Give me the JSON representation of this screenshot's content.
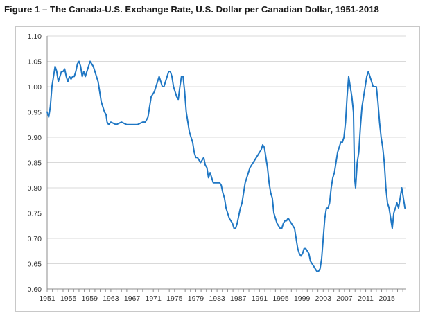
{
  "figure": {
    "title": "Figure 1 – The Canada-U.S. Exchange Rate, U.S. Dollar per Canadian Dollar, 1951-2018"
  },
  "colors": {
    "line": "#1f77c4",
    "grid": "#d9d9d9",
    "axis": "#8c8c8c",
    "frame": "#c8c8c8"
  },
  "chart_data": {
    "type": "line",
    "title": "",
    "xlabel": "",
    "ylabel": "",
    "xlim": [
      1951,
      2018.5
    ],
    "ylim": [
      0.6,
      1.1
    ],
    "grid": "horizontal",
    "legend": "none",
    "x_tick_labels": [
      "1951",
      "1955",
      "1959",
      "1963",
      "1967",
      "1971",
      "1975",
      "1979",
      "1983",
      "1987",
      "1991",
      "1995",
      "1999",
      "2003",
      "2007",
      "2011",
      "2015"
    ],
    "y_tick_labels": [
      "0.60",
      "0.65",
      "0.70",
      "0.75",
      "0.80",
      "0.85",
      "0.90",
      "0.95",
      "1.00",
      "1.05",
      "1.10"
    ],
    "series": [
      {
        "name": "",
        "x": [
          1951.0,
          1951.3,
          1951.6,
          1951.9,
          1952.2,
          1952.5,
          1952.8,
          1953.1,
          1953.4,
          1953.7,
          1954.0,
          1954.3,
          1954.6,
          1954.9,
          1955.2,
          1955.5,
          1955.8,
          1956.1,
          1956.4,
          1956.7,
          1957.0,
          1957.3,
          1957.6,
          1957.9,
          1958.2,
          1958.5,
          1958.8,
          1959.1,
          1959.4,
          1959.7,
          1960.0,
          1960.3,
          1960.6,
          1960.9,
          1961.2,
          1961.5,
          1961.8,
          1962.1,
          1962.3,
          1962.6,
          1963.0,
          1964.0,
          1965.0,
          1966.0,
          1967.0,
          1968.0,
          1969.0,
          1969.5,
          1970.0,
          1970.3,
          1970.6,
          1970.9,
          1971.2,
          1971.5,
          1971.8,
          1972.1,
          1972.4,
          1972.7,
          1973.0,
          1973.3,
          1973.6,
          1973.9,
          1974.2,
          1974.5,
          1974.8,
          1975.1,
          1975.4,
          1975.7,
          1976.0,
          1976.3,
          1976.6,
          1976.9,
          1977.2,
          1977.5,
          1977.8,
          1978.1,
          1978.4,
          1978.7,
          1979.0,
          1979.3,
          1979.6,
          1979.9,
          1980.2,
          1980.5,
          1980.8,
          1981.1,
          1981.4,
          1981.7,
          1982.0,
          1982.3,
          1982.6,
          1982.9,
          1983.2,
          1983.5,
          1983.8,
          1984.1,
          1984.4,
          1984.7,
          1985.0,
          1985.3,
          1985.6,
          1985.9,
          1986.2,
          1986.5,
          1986.8,
          1987.1,
          1987.4,
          1987.7,
          1988.0,
          1988.3,
          1988.6,
          1988.9,
          1989.2,
          1989.5,
          1989.8,
          1990.1,
          1990.4,
          1990.7,
          1991.0,
          1991.3,
          1991.6,
          1991.9,
          1992.2,
          1992.5,
          1992.8,
          1993.1,
          1993.4,
          1993.7,
          1994.0,
          1994.3,
          1994.6,
          1994.9,
          1995.2,
          1995.5,
          1995.8,
          1996.1,
          1996.4,
          1996.7,
          1997.0,
          1997.3,
          1997.6,
          1997.9,
          1998.2,
          1998.5,
          1998.8,
          1999.1,
          1999.4,
          1999.7,
          2000.0,
          2000.3,
          2000.6,
          2000.9,
          2001.2,
          2001.5,
          2001.8,
          2002.1,
          2002.4,
          2002.7,
          2003.0,
          2003.3,
          2003.6,
          2003.9,
          2004.2,
          2004.5,
          2004.8,
          2005.1,
          2005.4,
          2005.7,
          2006.0,
          2006.3,
          2006.6,
          2006.9,
          2007.2,
          2007.5,
          2007.8,
          2008.1,
          2008.4,
          2008.7,
          2008.9,
          2009.1,
          2009.4,
          2009.7,
          2010.0,
          2010.3,
          2010.6,
          2010.9,
          2011.2,
          2011.5,
          2011.8,
          2012.1,
          2012.4,
          2012.7,
          2013.0,
          2013.3,
          2013.6,
          2013.9,
          2014.2,
          2014.5,
          2014.8,
          2015.1,
          2015.4,
          2015.7,
          2016.0,
          2016.3,
          2016.6,
          2016.9,
          2017.2,
          2017.5,
          2017.8,
          2018.1,
          2018.4
        ],
        "y": [
          0.95,
          0.94,
          0.96,
          1.0,
          1.02,
          1.04,
          1.03,
          1.01,
          1.02,
          1.03,
          1.03,
          1.035,
          1.02,
          1.01,
          1.02,
          1.015,
          1.02,
          1.02,
          1.03,
          1.045,
          1.05,
          1.04,
          1.02,
          1.03,
          1.02,
          1.03,
          1.04,
          1.05,
          1.045,
          1.04,
          1.03,
          1.02,
          1.01,
          0.99,
          0.97,
          0.96,
          0.95,
          0.945,
          0.93,
          0.925,
          0.93,
          0.925,
          0.93,
          0.925,
          0.925,
          0.925,
          0.93,
          0.93,
          0.94,
          0.96,
          0.98,
          0.985,
          0.99,
          1.0,
          1.01,
          1.02,
          1.01,
          1.0,
          1.0,
          1.01,
          1.02,
          1.03,
          1.03,
          1.02,
          1.0,
          0.99,
          0.98,
          0.975,
          1.0,
          1.02,
          1.02,
          0.99,
          0.95,
          0.93,
          0.91,
          0.9,
          0.89,
          0.87,
          0.86,
          0.86,
          0.855,
          0.85,
          0.855,
          0.86,
          0.845,
          0.84,
          0.82,
          0.83,
          0.82,
          0.81,
          0.81,
          0.81,
          0.81,
          0.81,
          0.805,
          0.79,
          0.78,
          0.76,
          0.75,
          0.74,
          0.735,
          0.73,
          0.72,
          0.72,
          0.73,
          0.745,
          0.76,
          0.77,
          0.79,
          0.81,
          0.82,
          0.83,
          0.84,
          0.845,
          0.85,
          0.855,
          0.86,
          0.865,
          0.87,
          0.875,
          0.885,
          0.88,
          0.86,
          0.84,
          0.81,
          0.79,
          0.78,
          0.75,
          0.74,
          0.73,
          0.725,
          0.72,
          0.72,
          0.73,
          0.735,
          0.735,
          0.74,
          0.735,
          0.73,
          0.725,
          0.72,
          0.7,
          0.68,
          0.67,
          0.665,
          0.67,
          0.68,
          0.68,
          0.675,
          0.67,
          0.655,
          0.65,
          0.645,
          0.64,
          0.635,
          0.635,
          0.64,
          0.66,
          0.7,
          0.74,
          0.76,
          0.76,
          0.77,
          0.8,
          0.82,
          0.83,
          0.85,
          0.87,
          0.88,
          0.89,
          0.89,
          0.9,
          0.93,
          0.98,
          1.02,
          1.0,
          0.98,
          0.95,
          0.82,
          0.8,
          0.85,
          0.87,
          0.92,
          0.96,
          0.98,
          1.0,
          1.02,
          1.03,
          1.02,
          1.01,
          1.0,
          1.0,
          1.0,
          0.97,
          0.93,
          0.9,
          0.88,
          0.85,
          0.8,
          0.77,
          0.76,
          0.74,
          0.72,
          0.75,
          0.76,
          0.77,
          0.76,
          0.78,
          0.8,
          0.78,
          0.76
        ]
      }
    ]
  }
}
